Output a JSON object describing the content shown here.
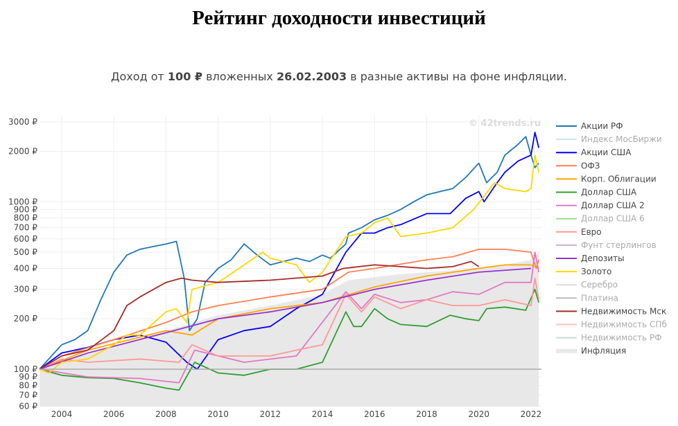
{
  "title": "Рейтинг доходности инвестиций",
  "subtitle": {
    "p1": "Доход от ",
    "b1": "100 ₽",
    "p2": " вложенных ",
    "b2": "26.02.2003",
    "p3": " в разные активы на фоне инфляции."
  },
  "watermark": "© 42trends.ru",
  "chart_data": {
    "type": "line",
    "yscale": "log",
    "ylim": [
      60,
      3300
    ],
    "xlim": [
      2003.15,
      2022.4
    ],
    "grid": true,
    "legend_position": "right",
    "yticks": [
      {
        "v": 3000,
        "label": "3000 ₽"
      },
      {
        "v": 2000,
        "label": "2000 ₽"
      },
      {
        "v": 1000,
        "label": "1000 ₽"
      },
      {
        "v": 900,
        "label": "900 ₽"
      },
      {
        "v": 800,
        "label": "800 ₽"
      },
      {
        "v": 700,
        "label": "700 ₽"
      },
      {
        "v": 600,
        "label": "600 ₽"
      },
      {
        "v": 500,
        "label": "500 ₽"
      },
      {
        "v": 400,
        "label": "400 ₽"
      },
      {
        "v": 300,
        "label": "300 ₽"
      },
      {
        "v": 200,
        "label": "200 ₽"
      },
      {
        "v": 100,
        "label": "100 ₽"
      },
      {
        "v": 90,
        "label": "90 ₽"
      },
      {
        "v": 80,
        "label": "80 ₽"
      },
      {
        "v": 70,
        "label": "70 ₽"
      },
      {
        "v": 60,
        "label": "60 ₽"
      }
    ],
    "xticks": [
      {
        "v": 2004,
        "label": "2004"
      },
      {
        "v": 2006,
        "label": "2006"
      },
      {
        "v": 2008,
        "label": "2008"
      },
      {
        "v": 2010,
        "label": "2010"
      },
      {
        "v": 2012,
        "label": "2012"
      },
      {
        "v": 2014,
        "label": "2014"
      },
      {
        "v": 2016,
        "label": "2016"
      },
      {
        "v": 2018,
        "label": "2018"
      },
      {
        "v": 2020,
        "label": "2020"
      },
      {
        "v": 2022,
        "label": "2022"
      }
    ],
    "reference_line": 100,
    "series": [
      {
        "name": "Акции РФ",
        "color": "#1f77b4",
        "visible": true,
        "x": [
          2003.15,
          2004,
          2004.5,
          2005,
          2005.5,
          2006,
          2006.5,
          2007,
          2007.5,
          2008,
          2008.4,
          2008.7,
          2008.9,
          2009.2,
          2009.5,
          2010,
          2010.5,
          2011,
          2011.5,
          2012,
          2012.5,
          2013,
          2013.5,
          2014,
          2014.3,
          2014.9,
          2015,
          2015.5,
          2016,
          2016.5,
          2017,
          2017.5,
          2018,
          2018.5,
          2019,
          2019.5,
          2020,
          2020.3,
          2020.7,
          2021,
          2021.5,
          2021.8,
          2022,
          2022.15,
          2022.3
        ],
        "y": [
          100,
          140,
          150,
          170,
          260,
          380,
          480,
          520,
          540,
          560,
          580,
          350,
          170,
          200,
          330,
          400,
          450,
          560,
          480,
          420,
          440,
          460,
          440,
          480,
          460,
          560,
          650,
          700,
          780,
          830,
          900,
          1000,
          1100,
          1150,
          1200,
          1400,
          1700,
          1300,
          1500,
          1900,
          2200,
          2450,
          1900,
          1600,
          1700
        ]
      },
      {
        "name": "Индекс МосБиржи",
        "color": "#c6e2f5",
        "visible": false
      },
      {
        "name": "Акции США",
        "color": "#0000ff",
        "visible": true,
        "x": [
          2003.15,
          2004,
          2005,
          2006,
          2007,
          2008,
          2008.8,
          2009.2,
          2010,
          2011,
          2012,
          2013,
          2014,
          2014.9,
          2015.5,
          2016,
          2016.5,
          2017,
          2018,
          2018.9,
          2019.5,
          2020,
          2020.2,
          2020.7,
          2021,
          2021.5,
          2022,
          2022.15,
          2022.3
        ],
        "y": [
          100,
          125,
          135,
          150,
          160,
          145,
          110,
          100,
          150,
          170,
          180,
          230,
          280,
          500,
          650,
          650,
          700,
          730,
          850,
          850,
          1050,
          1150,
          1000,
          1300,
          1500,
          1750,
          1900,
          2600,
          2100
        ]
      },
      {
        "name": "ОФЗ",
        "color": "#ff7f50",
        "visible": true,
        "x": [
          2003.15,
          2004,
          2006,
          2008,
          2009,
          2010,
          2012,
          2014,
          2015,
          2016,
          2018,
          2019,
          2020,
          2021,
          2022,
          2022.2,
          2022.3
        ],
        "y": [
          100,
          120,
          150,
          190,
          220,
          240,
          270,
          300,
          380,
          400,
          450,
          470,
          520,
          520,
          500,
          400,
          450
        ]
      },
      {
        "name": "Корп. Облигации",
        "color": "#ffa500",
        "visible": true,
        "x": [
          2003.15,
          2005,
          2008,
          2009,
          2010,
          2012,
          2014,
          2016,
          2018,
          2020,
          2021,
          2022,
          2022.3
        ],
        "y": [
          100,
          130,
          170,
          160,
          200,
          230,
          250,
          310,
          360,
          400,
          420,
          420,
          400
        ]
      },
      {
        "name": "Доллар США",
        "color": "#2ca02c",
        "visible": true,
        "x": [
          2003.15,
          2004,
          2005,
          2006,
          2007,
          2008,
          2008.5,
          2009.1,
          2010,
          2011,
          2012,
          2013,
          2014,
          2014.9,
          2015.2,
          2015.5,
          2016,
          2016.5,
          2017,
          2018,
          2018.9,
          2019.5,
          2020,
          2020.3,
          2021,
          2021.8,
          2022.15,
          2022.3
        ],
        "y": [
          100,
          92,
          89,
          88,
          83,
          77,
          75,
          110,
          95,
          92,
          100,
          100,
          110,
          220,
          180,
          180,
          230,
          200,
          185,
          180,
          210,
          200,
          195,
          230,
          235,
          225,
          300,
          250
        ]
      },
      {
        "name": "Доллар США 2",
        "color": "#e377c2",
        "visible": true,
        "x": [
          2003.15,
          2005,
          2007,
          2008.5,
          2009.1,
          2011,
          2013,
          2014.9,
          2015.5,
          2016,
          2017,
          2018,
          2019,
          2020,
          2021,
          2022,
          2022.15,
          2022.3
        ],
        "y": [
          100,
          90,
          88,
          83,
          130,
          110,
          120,
          290,
          230,
          280,
          250,
          260,
          290,
          280,
          330,
          330,
          500,
          380
        ]
      },
      {
        "name": "Доллар США 6",
        "color": "#98df8a",
        "visible": false
      },
      {
        "name": "Евро",
        "color": "#ff9896",
        "visible": true,
        "x": [
          2003.15,
          2004,
          2005,
          2007,
          2008.5,
          2009,
          2010,
          2012,
          2013,
          2014,
          2014.9,
          2015.5,
          2016,
          2017,
          2018,
          2019,
          2020,
          2021,
          2022,
          2022.15,
          2022.3
        ],
        "y": [
          100,
          115,
          110,
          115,
          110,
          140,
          120,
          120,
          130,
          140,
          280,
          220,
          270,
          230,
          260,
          240,
          240,
          260,
          240,
          350,
          260
        ]
      },
      {
        "name": "Фунт стерлингов",
        "color": "#c5b0d5",
        "visible": false
      },
      {
        "name": "Депозиты",
        "color": "#9932cc",
        "visible": true,
        "x": [
          2003.15,
          2005,
          2008,
          2010,
          2012,
          2014,
          2016,
          2018,
          2020,
          2022
        ],
        "y": [
          100,
          125,
          165,
          200,
          220,
          250,
          300,
          340,
          380,
          400
        ]
      },
      {
        "name": "Золото",
        "color": "#ffd700",
        "visible": true,
        "x": [
          2003.15,
          2003.5,
          2004,
          2005,
          2006,
          2006.5,
          2007,
          2008,
          2008.4,
          2008.8,
          2009,
          2010,
          2011,
          2011.7,
          2012,
          2013,
          2013.5,
          2014,
          2014.9,
          2015.5,
          2016,
          2016.5,
          2017,
          2018,
          2019,
          2019.8,
          2020.6,
          2021,
          2021.8,
          2022,
          2022.15,
          2022.3
        ],
        "y": [
          100,
          95,
          110,
          115,
          140,
          160,
          160,
          220,
          230,
          190,
          300,
          330,
          420,
          500,
          460,
          420,
          330,
          380,
          620,
          650,
          750,
          800,
          620,
          650,
          700,
          900,
          1300,
          1200,
          1150,
          1200,
          1900,
          1500
        ]
      },
      {
        "name": "Серебро",
        "color": "#dddddd",
        "visible": false
      },
      {
        "name": "Платина",
        "color": "#bbbbbb",
        "visible": false
      },
      {
        "name": "Недвижимость Мск",
        "color": "#a52a2a",
        "visible": true,
        "x": [
          2003.15,
          2004,
          2005,
          2006,
          2006.5,
          2007,
          2008,
          2008.6,
          2009,
          2010,
          2012,
          2013,
          2014,
          2014.8,
          2016,
          2017,
          2018,
          2019,
          2019.7,
          2020
        ],
        "y": [
          100,
          120,
          130,
          170,
          240,
          270,
          330,
          350,
          340,
          330,
          340,
          350,
          360,
          400,
          420,
          410,
          400,
          410,
          440,
          410
        ]
      },
      {
        "name": "Недвижимость СПб",
        "color": "#f4c2c2",
        "visible": false
      },
      {
        "name": "Недвижимость РФ",
        "color": "#c9dcd6",
        "visible": false
      },
      {
        "name": "Инфляция",
        "color": "#e8e8e8",
        "visible": true,
        "area": true,
        "x": [
          2003.15,
          2005,
          2008,
          2010,
          2012,
          2014,
          2015,
          2017,
          2019,
          2021,
          2022,
          2022.3
        ],
        "y": [
          100,
          125,
          170,
          210,
          240,
          280,
          340,
          370,
          390,
          420,
          450,
          500
        ]
      }
    ]
  }
}
